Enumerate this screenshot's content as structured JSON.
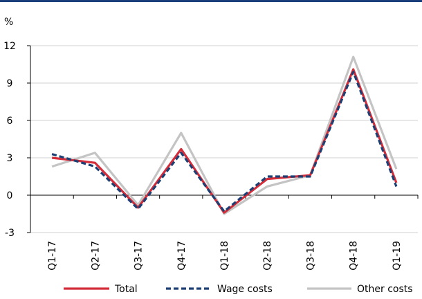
{
  "chart_data": {
    "type": "line",
    "title": "",
    "unit_label": "%",
    "xlabel": "",
    "ylabel": "",
    "categories": [
      "Q1-17",
      "Q2-17",
      "Q3-17",
      "Q4-17",
      "Q1-18",
      "Q2-18",
      "Q3-18",
      "Q4-18",
      "Q1-19"
    ],
    "ylim": [
      -3,
      12
    ],
    "yticks": [
      "-3",
      "0",
      "3",
      "6",
      "9",
      "12"
    ],
    "grid": "horizontal",
    "legend_position": "bottom",
    "series": [
      {
        "name": "Total",
        "color": "#d42d3a",
        "style": "solid",
        "values": [
          3.0,
          2.6,
          -1.0,
          3.7,
          -1.4,
          1.3,
          1.6,
          10.1,
          1.0
        ]
      },
      {
        "name": "Wage costs",
        "color": "#1c3f74",
        "style": "dashed",
        "values": [
          3.3,
          2.3,
          -1.1,
          3.4,
          -1.3,
          1.5,
          1.5,
          9.9,
          0.7
        ]
      },
      {
        "name": "Other costs",
        "color": "#c4c4c4",
        "style": "solid",
        "values": [
          2.3,
          3.4,
          -0.8,
          5.0,
          -1.5,
          0.7,
          1.6,
          11.1,
          2.1
        ]
      }
    ]
  }
}
